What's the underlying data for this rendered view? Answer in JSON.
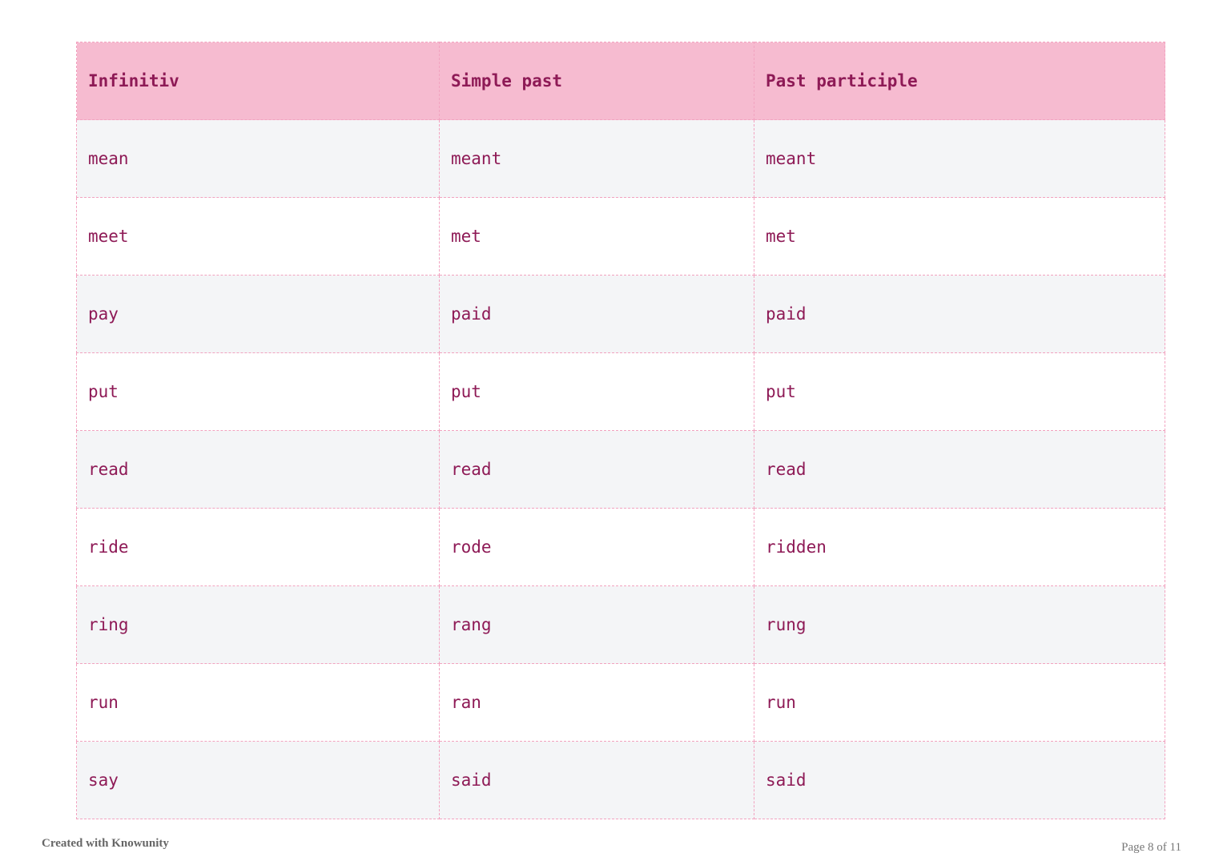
{
  "table": {
    "headers": [
      "Infinitiv",
      "Simple past",
      "Past participle"
    ],
    "rows": [
      [
        "mean",
        "meant",
        "meant"
      ],
      [
        "meet",
        "met",
        "met"
      ],
      [
        "pay",
        "paid",
        "paid"
      ],
      [
        "put",
        "put",
        "put"
      ],
      [
        "read",
        "read",
        "read"
      ],
      [
        "ride",
        "rode",
        "ridden"
      ],
      [
        "ring",
        "rang",
        "rung"
      ],
      [
        "run",
        "ran",
        "run"
      ],
      [
        "say",
        "said",
        "said"
      ]
    ]
  },
  "footer": {
    "credit": "Created with Knowunity",
    "page": "Page 8 of 11"
  },
  "colors": {
    "header_bg": "#f6bbd0",
    "text": "#8e1a56",
    "border": "#f2a3c0",
    "alt_row_bg": "#f4f5f7"
  }
}
